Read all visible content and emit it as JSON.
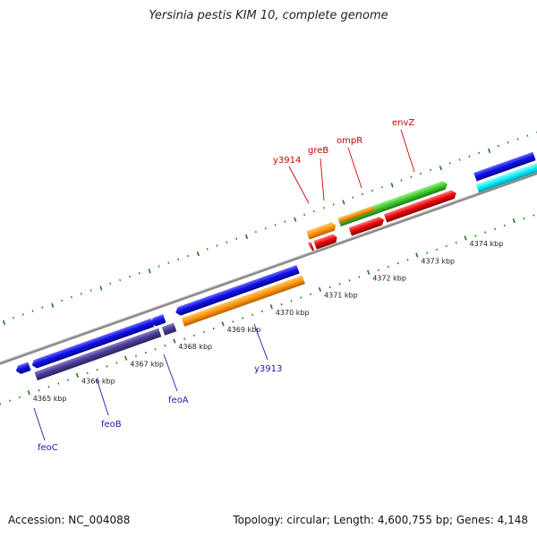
{
  "header": {
    "title": "Yersinia pestis KIM 10, complete genome"
  },
  "footer": {
    "accession": "Accession: NC_004088",
    "summary": "Topology: circular; Length: 4,600,755 bp; Genes: 4,148"
  },
  "scale_labels": [
    {
      "label": "4365 kbp",
      "kbp": 4365
    },
    {
      "label": "4366 kbp",
      "kbp": 4366
    },
    {
      "label": "4367 kbp",
      "kbp": 4367
    },
    {
      "label": "4368 kbp",
      "kbp": 4368
    },
    {
      "label": "4369 kbp",
      "kbp": 4369
    },
    {
      "label": "4370 kbp",
      "kbp": 4370
    },
    {
      "label": "4371 kbp",
      "kbp": 4371
    },
    {
      "label": "4372 kbp",
      "kbp": 4372
    },
    {
      "label": "4373 kbp",
      "kbp": 4373
    },
    {
      "label": "4374 kbp",
      "kbp": 4374
    }
  ],
  "gene_labels": [
    {
      "name": "feoC",
      "color": "#1a1aaa"
    },
    {
      "name": "feoB",
      "color": "#1a1aaa"
    },
    {
      "name": "feoA",
      "color": "#1a1aaa"
    },
    {
      "name": "y3913",
      "color": "#1a1aaa"
    },
    {
      "name": "y3914",
      "color": "#cc0000"
    },
    {
      "name": "greB",
      "color": "#cc0000"
    },
    {
      "name": "ompR",
      "color": "#cc0000"
    },
    {
      "name": "envZ",
      "color": "#cc0000"
    }
  ],
  "colors": {
    "backbone": "#888888",
    "ticks": "#1a7a1a",
    "blue": "#1010e8",
    "slate": "#4a3f9a",
    "orange": "#ff9a10",
    "green": "#44cc33",
    "red": "#ee0a0a",
    "cyan": "#11eeff",
    "reverse_label": "#1a1aaa",
    "forward_label": "#cc0000"
  }
}
